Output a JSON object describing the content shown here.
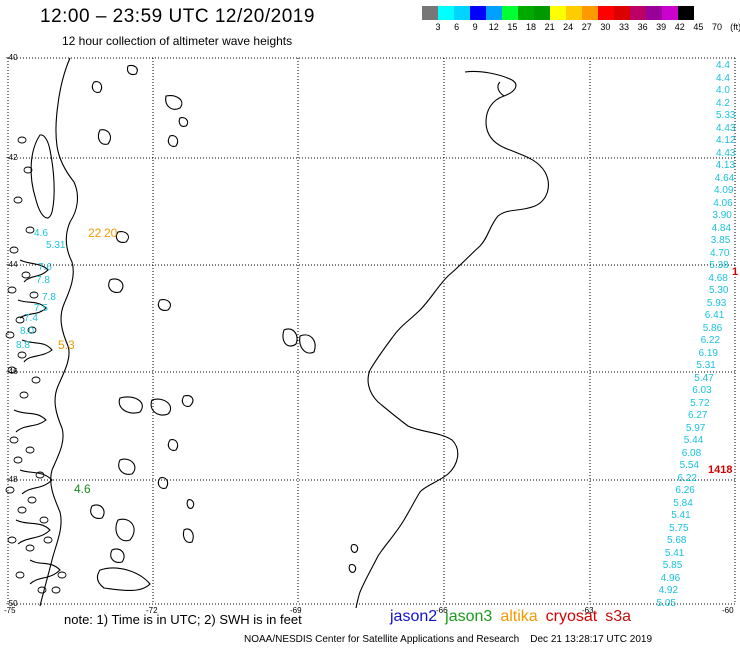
{
  "header": {
    "title": "12:00 – 23:59 UTC 12/20/2019",
    "subtitle": "12 hour collection of altimeter wave heights"
  },
  "colorbar": {
    "colors": [
      "#777777",
      "#00ffff",
      "#00d4ff",
      "#0000ff",
      "#00a0ff",
      "#00ff33",
      "#00aa00",
      "#009900",
      "#ffff00",
      "#ffcc00",
      "#ff9900",
      "#ff0000",
      "#dd0000",
      "#bb0066",
      "#990099",
      "#cc00cc",
      "#000000"
    ],
    "labels": [
      "3",
      "6",
      "9",
      "12",
      "15",
      "18",
      "21",
      "24",
      "27",
      "30",
      "33",
      "36",
      "39",
      "42",
      "45",
      "70",
      "(ft)"
    ]
  },
  "axes": {
    "lat_labels": [
      "-40",
      "-42",
      "-44",
      "-46",
      "-48",
      "-50"
    ],
    "lon_labels": [
      "-75",
      "-72",
      "-69",
      "-66",
      "-63",
      "-60"
    ]
  },
  "observations": {
    "cyan_right": [
      "4.4",
      "4.4",
      "4.0",
      "4.2",
      "5.33",
      "4.43",
      "4.12",
      "4.43",
      "4.13",
      "4.64",
      "4.09",
      "4.06",
      "3.90",
      "4.84",
      "3.85",
      "4.70",
      "5.38",
      "4.68",
      "5.30",
      "5.93",
      "6.41",
      "5.86",
      "6.22",
      "6.19",
      "5.31",
      "5.47",
      "6.03",
      "5.72",
      "6.27",
      "5.97",
      "5.44",
      "6.08",
      "5.54",
      "6.22",
      "6.26",
      "5.84",
      "5.41",
      "5.75",
      "5.68",
      "5.41",
      "5.85",
      "4.96",
      "4.92",
      "5.05"
    ],
    "cyan_left": [
      "4.6",
      "5.31",
      "7.6",
      "7.8",
      "7.8",
      "7.5",
      "7.4",
      "8.0",
      "8.8"
    ],
    "orange": [
      "22",
      "20",
      "5.3"
    ],
    "green": [
      "4.6"
    ],
    "red": [
      "1",
      "1418"
    ]
  },
  "footer": {
    "note": "note:  1) Time is in UTC;  2) SWH is in feet",
    "satellites": [
      {
        "name": "jason2",
        "color": "#1010d0"
      },
      {
        "name": "jason3",
        "color": "#1a9a1a"
      },
      {
        "name": "altika",
        "color": "#f29a00"
      },
      {
        "name": "cryosat",
        "color": "#d40000"
      },
      {
        "name": "s3a",
        "color": "#c01010"
      }
    ],
    "agency": "NOAA/NESDIS Center for Satellite Applications and Research",
    "timestamp": "Dec 21 13:28:17 UTC 2019"
  }
}
